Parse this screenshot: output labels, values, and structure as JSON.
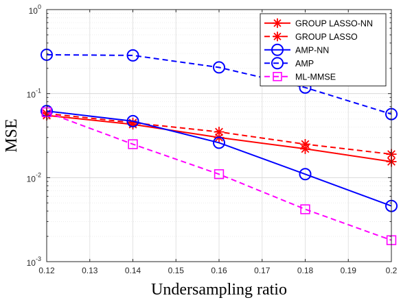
{
  "chart_data": {
    "type": "line",
    "xlabel": "Undersampling ratio",
    "ylabel": "MSE",
    "x": [
      0.12,
      0.14,
      0.16,
      0.18,
      0.2
    ],
    "xlim": [
      0.12,
      0.2
    ],
    "xticks": [
      "0.12",
      "0.13",
      "0.14",
      "0.15",
      "0.16",
      "0.17",
      "0.18",
      "0.19",
      "0.2"
    ],
    "yscale": "log",
    "ylim": [
      0.001,
      1
    ],
    "yticks": [
      {
        "base": "10",
        "exp": "0"
      },
      {
        "base": "10",
        "exp": "-1"
      },
      {
        "base": "10",
        "exp": "-2"
      },
      {
        "base": "10",
        "exp": "-3"
      }
    ],
    "grid": true,
    "legend_position": "top-right",
    "series": [
      {
        "name": "GROUP LASSO-NN",
        "values": [
          0.055,
          0.043,
          0.03,
          0.022,
          0.0155
        ],
        "color": "#ff0000",
        "dash": "solid",
        "marker": "asterisk"
      },
      {
        "name": "GROUP LASSO",
        "values": [
          0.058,
          0.045,
          0.035,
          0.025,
          0.019
        ],
        "color": "#ff0000",
        "dash": "dashed",
        "marker": "asterisk"
      },
      {
        "name": "AMP-NN",
        "values": [
          0.062,
          0.047,
          0.026,
          0.011,
          0.0046
        ],
        "color": "#0000ff",
        "dash": "solid",
        "marker": "circle"
      },
      {
        "name": "AMP",
        "values": [
          0.29,
          0.285,
          0.205,
          0.118,
          0.057
        ],
        "color": "#0000ff",
        "dash": "dashed",
        "marker": "circle"
      },
      {
        "name": "ML-MMSE",
        "values": [
          0.06,
          0.025,
          0.011,
          0.0042,
          0.0018
        ],
        "color": "#ff00ff",
        "dash": "dashed",
        "marker": "square"
      }
    ]
  }
}
